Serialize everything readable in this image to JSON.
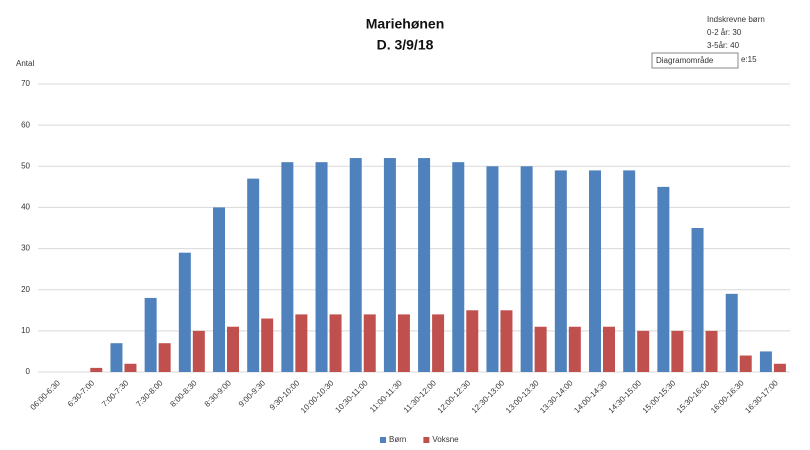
{
  "chart_data": {
    "type": "bar",
    "title": "Mariehønen",
    "subtitle": "D. 3/9/18",
    "y_label": "Antal",
    "annotation": [
      "Indskrevne børn",
      "0-2 år: 30",
      "3-5år: 40",
      "e:15"
    ],
    "tooltip": "Diagramområde",
    "categories": [
      "06:00-6:30",
      "6:30-7:00",
      "7:00-7:30",
      "7:30-8:00",
      "8:00-8:30",
      "8:30-9:00",
      "9:00-9:30",
      "9:30-10:00",
      "10:00-10:30",
      "10:30-11:00",
      "11:00-11:30",
      "11:30-12:00",
      "12:00-12:30",
      "12:30-13:00",
      "13:00-13:30",
      "13:30-14:00",
      "14:00-14:30",
      "14:30-15:00",
      "15:00-15:30",
      "15:30-16:00",
      "16:00-16:30",
      "16:30-17:00"
    ],
    "series": [
      {
        "name": "Børn",
        "color": "#4f81bd",
        "values": [
          0,
          0,
          7,
          18,
          29,
          40,
          47,
          51,
          51,
          52,
          52,
          52,
          51,
          50,
          50,
          49,
          49,
          49,
          45,
          35,
          19,
          5
        ]
      },
      {
        "name": "Voksne",
        "color": "#c0504d",
        "values": [
          0,
          1,
          2,
          7,
          10,
          11,
          13,
          14,
          14,
          14,
          14,
          14,
          15,
          15,
          11,
          11,
          11,
          10,
          10,
          10,
          4,
          2
        ]
      }
    ],
    "ylim": [
      0,
      70
    ],
    "yticks": [
      0,
      10,
      20,
      30,
      40,
      50,
      60,
      70
    ],
    "grid": true,
    "legend": "bottom"
  }
}
